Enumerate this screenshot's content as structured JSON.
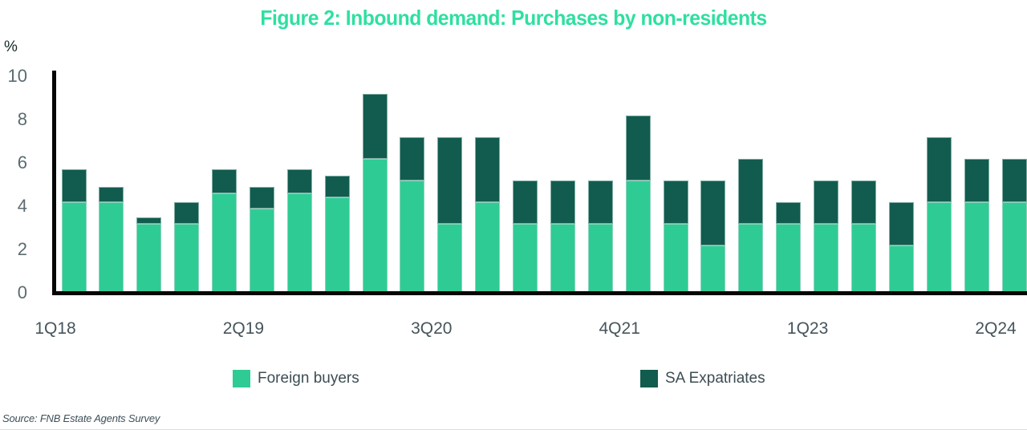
{
  "title": {
    "text": "Figure 2: Inbound demand: Purchases by non-residents",
    "color": "#2ee0a0"
  },
  "y_axis": {
    "unit_label": "%",
    "ticks": [
      "10",
      "8",
      "6",
      "4",
      "2",
      "0"
    ],
    "min": 0,
    "max": 10
  },
  "x_axis": {
    "labels": [
      "1Q18",
      "2Q19",
      "3Q20",
      "4Q21",
      "1Q23",
      "2Q24"
    ],
    "at_category_indices": [
      0,
      5,
      10,
      15,
      20,
      25
    ]
  },
  "legend": {
    "items": [
      {
        "label": "Foreign buyers",
        "color": "#2fcb95"
      },
      {
        "label": "SA Expatriates",
        "color": "#115c4e"
      }
    ]
  },
  "source": {
    "text": "Source: FNB Estate Agents Survey"
  },
  "chart_data": {
    "type": "bar",
    "stacked": true,
    "title": "Figure 2: Inbound demand: Purchases by non-residents",
    "xlabel": "",
    "ylabel": "%",
    "ylim": [
      0,
      10
    ],
    "grid": false,
    "legend_position": "bottom",
    "categories": [
      "1Q18",
      "2Q18",
      "3Q18",
      "4Q18",
      "1Q19",
      "2Q19",
      "3Q19",
      "4Q19",
      "1Q20",
      "2Q20",
      "3Q20",
      "4Q20",
      "1Q21",
      "2Q21",
      "3Q21",
      "4Q21",
      "1Q22",
      "2Q22",
      "3Q22",
      "4Q22",
      "1Q23",
      "2Q23",
      "3Q23",
      "4Q23",
      "1Q24",
      "2Q24"
    ],
    "series": [
      {
        "name": "Foreign buyers",
        "color": "#2fcb95",
        "values": [
          4.2,
          4.2,
          3.2,
          3.2,
          4.6,
          3.9,
          4.6,
          4.4,
          6.2,
          5.2,
          3.2,
          4.2,
          3.2,
          3.2,
          3.2,
          5.2,
          3.2,
          2.2,
          3.2,
          3.2,
          3.2,
          3.2,
          2.2,
          4.2,
          4.2,
          4.2
        ]
      },
      {
        "name": "SA Expatriates",
        "color": "#115c4e",
        "values": [
          1.5,
          0.7,
          0.3,
          1.0,
          1.1,
          1.0,
          1.1,
          1.0,
          3.0,
          2.0,
          4.0,
          3.0,
          2.0,
          2.0,
          2.0,
          3.0,
          2.0,
          3.0,
          3.0,
          1.0,
          2.0,
          2.0,
          2.0,
          3.0,
          2.0,
          2.0
        ]
      }
    ]
  }
}
